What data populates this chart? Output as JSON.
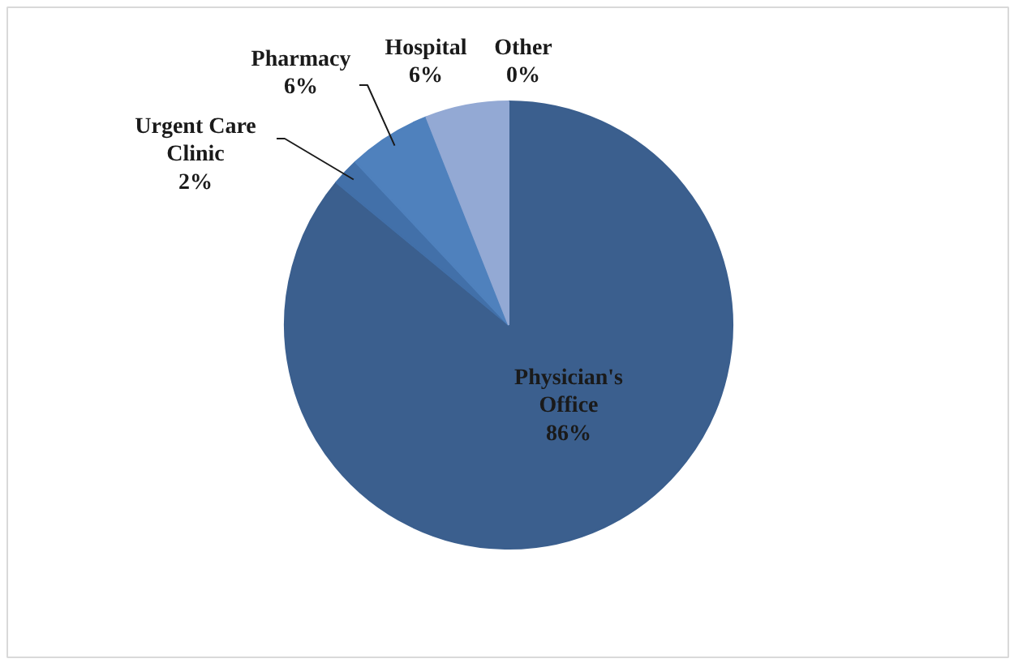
{
  "chart_data": {
    "type": "pie",
    "categories": [
      "Physician's Office",
      "Urgent Care Clinic",
      "Pharmacy",
      "Hospital",
      "Other"
    ],
    "values": [
      86,
      2,
      6,
      6,
      0
    ],
    "colors": [
      "#3b5f8e",
      "#4270a9",
      "#4f81bd",
      "#93a9d4",
      "#c6d3e9"
    ],
    "value_labels": [
      "86%",
      "2%",
      "6%",
      "6%",
      "0%"
    ]
  }
}
